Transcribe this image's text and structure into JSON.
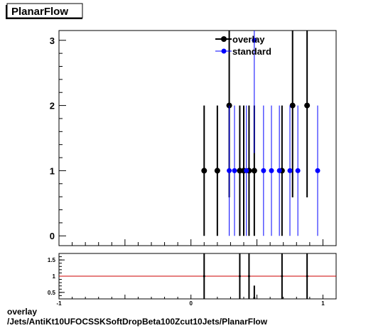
{
  "title": "PlanarFlow",
  "footer": {
    "line1": "overlay",
    "line2": "/Jets/AntiKt10UFOCSSKSoftDropBeta100Zcut10Jets/PlanarFlow"
  },
  "colors": {
    "overlay": "#000000",
    "standard": "#0000ff",
    "ratio_line": "#cc0000"
  },
  "chart_data": [
    {
      "type": "scatter",
      "title": "PlanarFlow",
      "xlim": [
        -1,
        1.1
      ],
      "ylim": [
        -0.15,
        3.15
      ],
      "x_ticks": [
        "-1",
        "0",
        "1"
      ],
      "y_ticks": [
        "0",
        "1",
        "2",
        "3"
      ],
      "legend_position": "top-right",
      "series": [
        {
          "name": "overlay",
          "x": [
            0.1,
            0.2,
            0.29,
            0.37,
            0.4,
            0.44,
            0.48,
            0.69,
            0.77,
            0.88
          ],
          "y": [
            1,
            1,
            2,
            1,
            1,
            1,
            1,
            1,
            2,
            2
          ],
          "yerr": [
            1,
            1,
            1.41,
            1,
            1,
            1,
            1,
            1,
            1.41,
            1.41
          ]
        },
        {
          "name": "standard",
          "x": [
            0.29,
            0.33,
            0.42,
            0.48,
            0.55,
            0.61,
            0.67,
            0.75,
            0.81,
            0.96
          ],
          "y": [
            1,
            1,
            1,
            3,
            1,
            1,
            1,
            1,
            1,
            1
          ],
          "yerr": [
            1,
            1,
            1,
            1.73,
            1,
            1,
            1,
            1,
            1,
            1
          ]
        }
      ]
    },
    {
      "type": "scatter",
      "title": "",
      "xlim": [
        -1,
        1.1
      ],
      "ylim": [
        0.3,
        1.7
      ],
      "x_ticks": [
        "-1",
        "0",
        "1"
      ],
      "y_ticks": [
        "0.5",
        "1",
        "1.5"
      ],
      "reference_line": 1,
      "series": [
        {
          "name": "",
          "x": [
            0.1,
            0.37,
            0.44,
            0.48,
            0.69,
            0.88
          ],
          "y": [
            1,
            1,
            1,
            0.33,
            1,
            1
          ],
          "yerr": [
            1.41,
            1.41,
            1.41,
            0.38,
            1.41,
            1.41
          ]
        }
      ]
    }
  ]
}
